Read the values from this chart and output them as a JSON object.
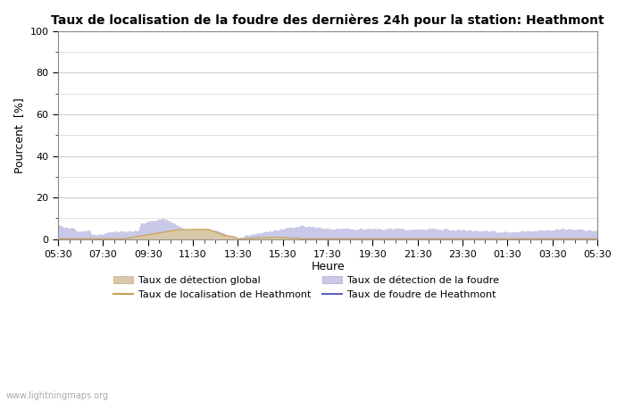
{
  "title": "Taux de localisation de la foudre des dernières 24h pour la station: Heathmont",
  "xlabel": "Heure",
  "ylabel": "Pourcent  [%]",
  "ylim": [
    0,
    100
  ],
  "yticks": [
    0,
    20,
    40,
    60,
    80,
    100
  ],
  "yticks_minor": [
    10,
    30,
    50,
    70,
    90
  ],
  "x_labels": [
    "05:30",
    "07:30",
    "09:30",
    "11:30",
    "13:30",
    "15:30",
    "17:30",
    "19:30",
    "21:30",
    "23:30",
    "01:30",
    "03:30",
    "05:30"
  ],
  "background_color": "#ffffff",
  "plot_bg_color": "#ffffff",
  "grid_color": "#cccccc",
  "fill_global_color": "#d9c9a8",
  "fill_lightning_color": "#c8c8e8",
  "line_localisation_color": "#c8a050",
  "line_foudre_color": "#6060c0",
  "watermark": "www.lightningmaps.org",
  "legend_labels": [
    "Taux de détection global",
    "Taux de localisation de Heathmont",
    "Taux de détection de la foudre",
    "Taux de foudre de Heathmont"
  ]
}
